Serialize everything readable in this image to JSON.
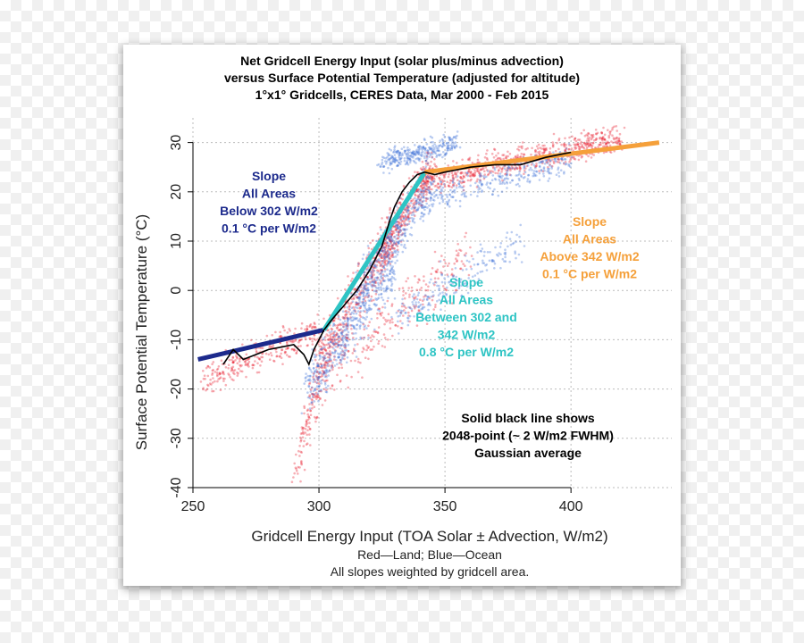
{
  "chart_data": {
    "type": "scatter",
    "title_lines": [
      "Net Gridcell Energy Input (solar plus/minus advection)",
      "versus Surface Potential Temperature (adjusted for altitude)",
      "1°x1° Gridcells, CERES Data, Mar 2000 - Feb 2015"
    ],
    "xlabel": "Gridcell Energy Input (TOA Solar ± Advection, W/m2)",
    "ylabel": "Surface Potential Temperature (°C)",
    "xlim": [
      250,
      440
    ],
    "ylim": [
      -40,
      35
    ],
    "x_ticks": [
      250,
      300,
      350,
      400
    ],
    "y_ticks": [
      -40,
      -30,
      -20,
      -10,
      0,
      10,
      20,
      30
    ],
    "grid": true,
    "footnotes": [
      "Red—Land; Blue—Ocean",
      "All slopes weighted by gridcell area."
    ],
    "colors": {
      "land": "#e8192c",
      "ocean": "#3d6fd6",
      "slope_low": "#1c2a8c",
      "slope_mid": "#2ec4c4",
      "slope_high": "#f5a03a",
      "gaussian": "#000000"
    },
    "series": [
      {
        "name": "Land",
        "color": "#e8192c",
        "clusters": [
          {
            "x": [
              255,
              300
            ],
            "y": [
              -18,
              -8
            ],
            "n": 300
          },
          {
            "x": [
              290,
              300
            ],
            "y": [
              -37,
              -18
            ],
            "n": 120
          },
          {
            "x": [
              300,
              330
            ],
            "y": [
              -14,
              12
            ],
            "n": 450
          },
          {
            "x": [
              325,
              345
            ],
            "y": [
              8,
              25
            ],
            "n": 300
          },
          {
            "x": [
              340,
              420
            ],
            "y": [
              22,
              31
            ],
            "n": 700
          },
          {
            "x": [
              300,
              360
            ],
            "y": [
              -18,
              8
            ],
            "n": 250
          }
        ]
      },
      {
        "name": "Ocean",
        "color": "#3d6fd6",
        "clusters": [
          {
            "x": [
              295,
              330
            ],
            "y": [
              -20,
              5
            ],
            "n": 450
          },
          {
            "x": [
              315,
              345
            ],
            "y": [
              0,
              22
            ],
            "n": 400
          },
          {
            "x": [
              325,
              355
            ],
            "y": [
              26,
              30
            ],
            "n": 300
          },
          {
            "x": [
              340,
              400
            ],
            "y": [
              18,
              27
            ],
            "n": 300
          },
          {
            "x": [
              330,
              380
            ],
            "y": [
              -6,
              10
            ],
            "n": 200
          }
        ]
      }
    ],
    "slope_lines": [
      {
        "name": "slope-low",
        "label_lines": [
          "Slope",
          "All Areas",
          "Below 302 W/m2",
          "0.1 °C per W/m2"
        ],
        "x": [
          252,
          302
        ],
        "y": [
          -14,
          -8
        ],
        "color": "#1c2a8c"
      },
      {
        "name": "slope-mid",
        "label_lines": [
          "Slope",
          "All Areas",
          "Between 302 and",
          "342 W/m2",
          "0.8 °C per W/m2"
        ],
        "x": [
          302,
          342
        ],
        "y": [
          -8,
          24
        ],
        "color": "#2ec4c4"
      },
      {
        "name": "slope-high",
        "label_lines": [
          "Slope",
          "All Areas",
          "Above 342 W/m2",
          "0.1 °C per W/m2"
        ],
        "x": [
          342,
          435
        ],
        "y": [
          24,
          30
        ],
        "color": "#f5a03a"
      }
    ],
    "gaussian_average": {
      "label_lines": [
        "Solid black line shows",
        "2048-point (~ 2 W/m2 FWHM)",
        "Gaussian average"
      ],
      "x": [
        262,
        266,
        270,
        275,
        280,
        285,
        290,
        294,
        296,
        298,
        300,
        302,
        305,
        310,
        315,
        320,
        325,
        328,
        330,
        333,
        336,
        339,
        342,
        346,
        350,
        360,
        370,
        380,
        390,
        400
      ],
      "y": [
        -15,
        -12,
        -14,
        -13,
        -12,
        -11.5,
        -11,
        -13,
        -15,
        -12,
        -10,
        -8,
        -6,
        -3,
        0,
        4,
        9,
        14,
        17,
        20,
        22,
        23.5,
        24,
        23.5,
        24,
        25,
        25.5,
        25.5,
        27,
        28
      ]
    }
  }
}
